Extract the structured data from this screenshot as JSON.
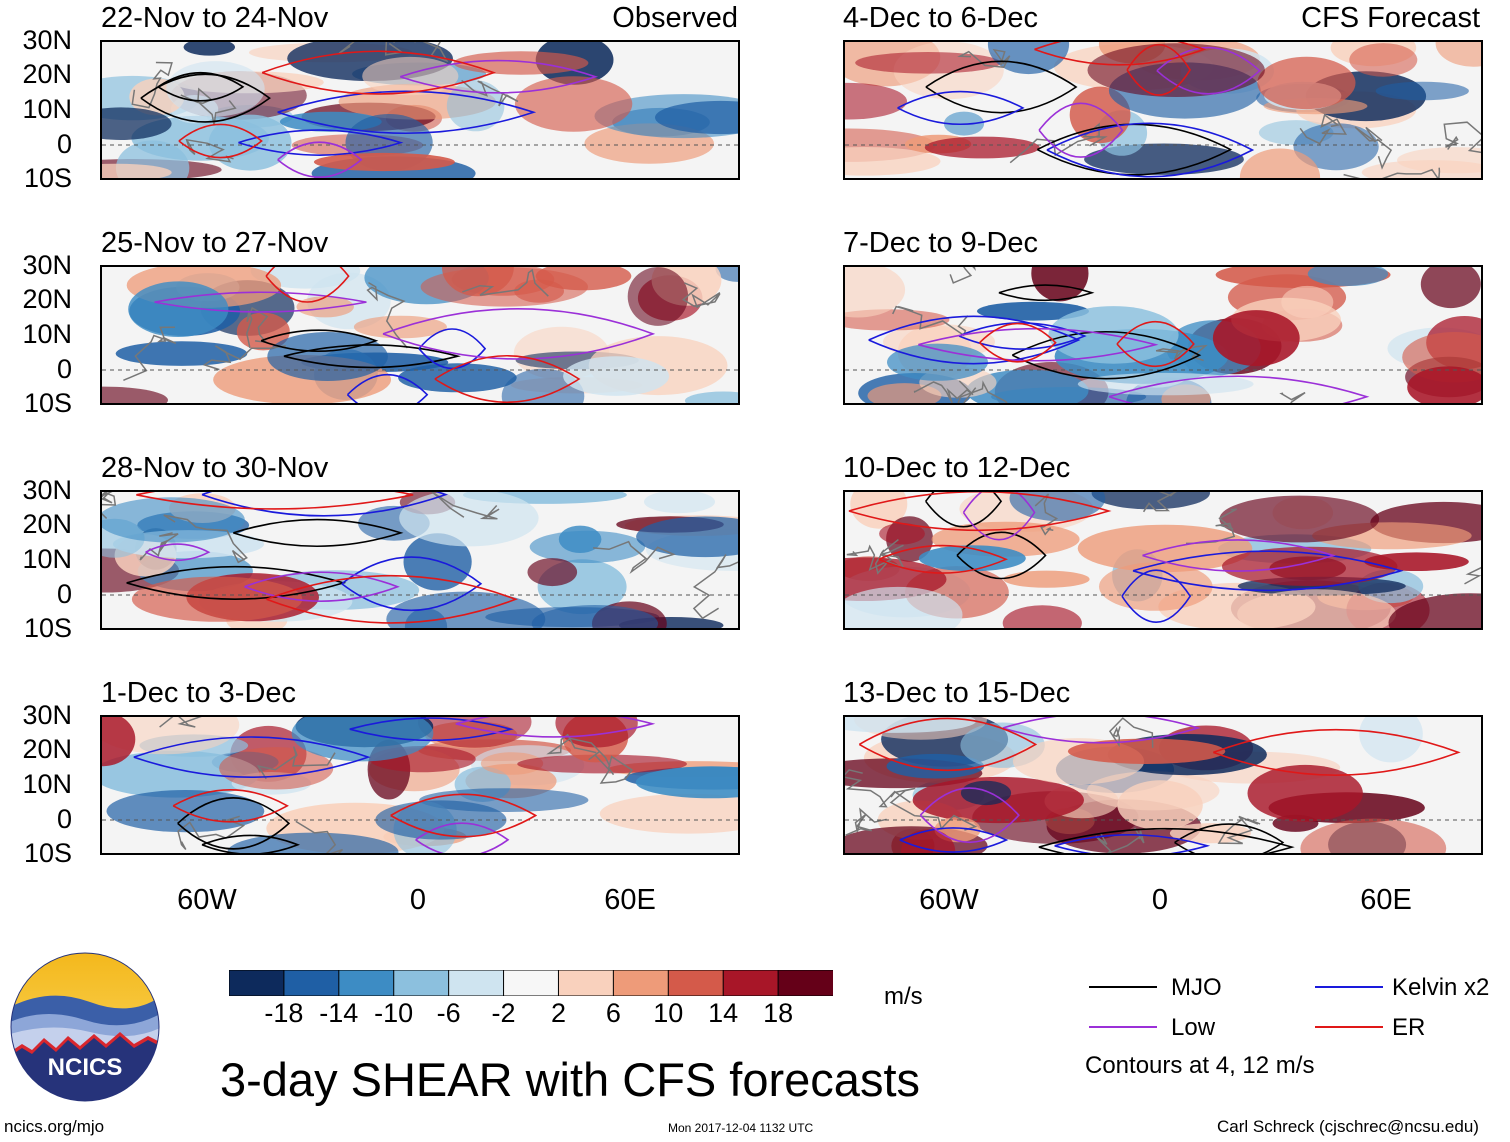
{
  "panels": {
    "left": [
      {
        "title": "22-Nov to 24-Nov",
        "tag": "Observed"
      },
      {
        "title": "25-Nov to 27-Nov",
        "tag": ""
      },
      {
        "title": "28-Nov to 30-Nov",
        "tag": ""
      },
      {
        "title": "1-Dec to 3-Dec",
        "tag": ""
      }
    ],
    "right": [
      {
        "title": "4-Dec to 6-Dec",
        "tag": "CFS Forecast"
      },
      {
        "title": "7-Dec to 9-Dec",
        "tag": ""
      },
      {
        "title": "10-Dec to 12-Dec",
        "tag": ""
      },
      {
        "title": "13-Dec to 15-Dec",
        "tag": ""
      }
    ]
  },
  "lat_labels": [
    "30N",
    "20N",
    "10N",
    "0",
    "10S"
  ],
  "lon_labels": [
    "60W",
    "0",
    "60E"
  ],
  "colorbar": {
    "labels": [
      "-18",
      "-14",
      "-10",
      "-6",
      "-2",
      "2",
      "6",
      "10",
      "14",
      "18"
    ],
    "colors": [
      "#0d2a5c",
      "#1f5fa5",
      "#3d8cc4",
      "#8cc0de",
      "#cfe4f0",
      "#f7f7f7",
      "#f9d1bd",
      "#ee9b79",
      "#d45a4a",
      "#a81628",
      "#650018"
    ],
    "unit": "m/s"
  },
  "legend": {
    "items": [
      {
        "label": "MJO",
        "color": "#000000"
      },
      {
        "label": "Kelvin x2",
        "color": "#1a1adc"
      },
      {
        "label": "Low",
        "color": "#9b30d8"
      },
      {
        "label": "ER",
        "color": "#e01818"
      }
    ],
    "note": "Contours at 4, 12 m/s"
  },
  "footer": {
    "main_title": "3-day SHEAR with CFS forecasts",
    "logo_text": "NCICS",
    "url": "ncics.org/mjo",
    "timestamp": "Mon 2017-12-04 1132 UTC",
    "credit": "Carl Schreck (cjschrec@ncsu.edu)"
  }
}
